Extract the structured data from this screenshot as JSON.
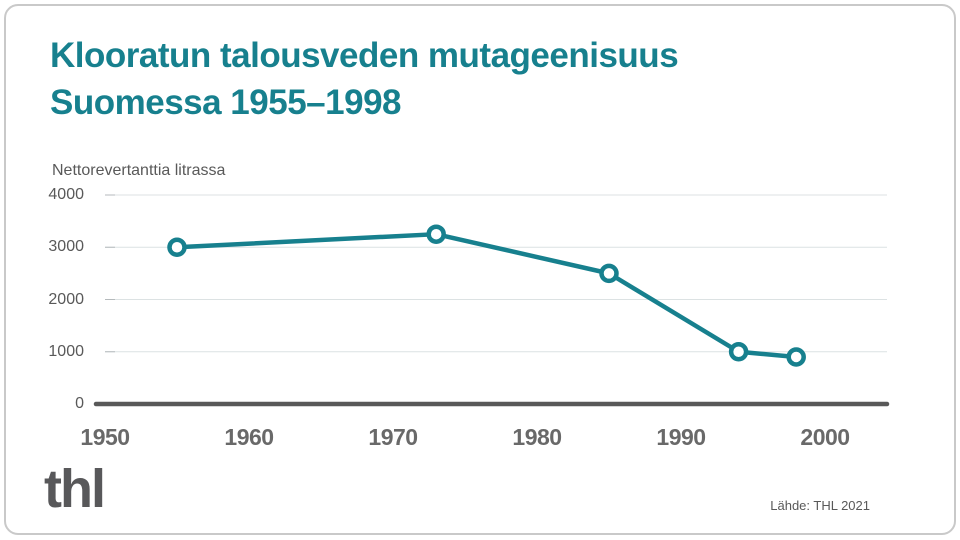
{
  "header": {
    "title_line1": "Klooratun talousveden mutageenisuus",
    "title_line2": "Suomessa 1955–1998"
  },
  "chart_data": {
    "type": "line",
    "title": "Klooratun talousveden mutageenisuus Suomessa 1955–1998",
    "ylabel": "Nettorevertanttia litrassa",
    "xlabel": "",
    "x": [
      1955,
      1973,
      1985,
      1994,
      1998
    ],
    "y": [
      3000,
      3250,
      2500,
      1000,
      900
    ],
    "xticks": [
      1950,
      1960,
      1970,
      1980,
      1990,
      2000
    ],
    "yticks": [
      0,
      1000,
      2000,
      3000,
      4000
    ],
    "xlim": [
      1949.3,
      2004.3
    ],
    "ylim": [
      0,
      4000
    ],
    "grid": "horizontal",
    "legend": "none",
    "marker": "open-circle"
  },
  "colors": {
    "accent": "#17808E",
    "axis": "#595959",
    "grid": "#dce2e3",
    "tick_stub": "#b5babc",
    "xtick_text": "#696969",
    "border": "#c9c9c9",
    "marker_fill": "#ffffff"
  },
  "footer": {
    "logo": "thl",
    "source": "Lähde: THL 2021"
  }
}
